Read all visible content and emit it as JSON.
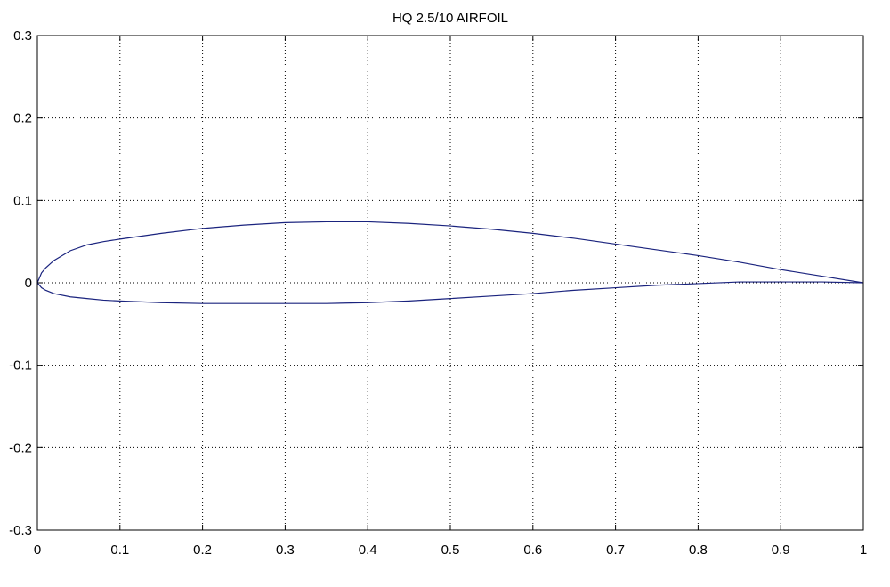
{
  "chart_data": {
    "type": "line",
    "title": "HQ 2.5/10 AIRFOIL",
    "xlabel": "",
    "ylabel": "",
    "xlim": [
      0,
      1
    ],
    "ylim": [
      -0.3,
      0.3
    ],
    "xticks": [
      0,
      0.1,
      0.2,
      0.3,
      0.4,
      0.5,
      0.6,
      0.7,
      0.8,
      0.9,
      1
    ],
    "xtick_labels": [
      "0",
      "0.1",
      "0.2",
      "0.3",
      "0.4",
      "0.5",
      "0.6",
      "0.7",
      "0.8",
      "0.9",
      "1"
    ],
    "yticks": [
      -0.3,
      -0.2,
      -0.1,
      0,
      0.1,
      0.2,
      0.3
    ],
    "ytick_labels": [
      "-0.3",
      "-0.2",
      "-0.1",
      "0",
      "0.1",
      "0.2",
      "0.3"
    ],
    "grid": true,
    "line_color": "#1a237e",
    "series": [
      {
        "x": [
          0,
          0.005,
          0.01,
          0.02,
          0.04,
          0.06,
          0.08,
          0.1,
          0.15,
          0.2,
          0.25,
          0.3,
          0.35,
          0.4,
          0.45,
          0.5,
          0.55,
          0.6,
          0.65,
          0.7,
          0.75,
          0.8,
          0.85,
          0.9,
          0.95,
          1
        ],
        "y": [
          0,
          0.012,
          0.018,
          0.027,
          0.039,
          0.046,
          0.05,
          0.053,
          0.06,
          0.066,
          0.07,
          0.073,
          0.074,
          0.074,
          0.072,
          0.069,
          0.065,
          0.06,
          0.054,
          0.047,
          0.04,
          0.033,
          0.025,
          0.016,
          0.008,
          0
        ]
      },
      {
        "x": [
          0,
          0.005,
          0.01,
          0.02,
          0.04,
          0.06,
          0.08,
          0.1,
          0.15,
          0.2,
          0.25,
          0.3,
          0.35,
          0.4,
          0.45,
          0.5,
          0.55,
          0.6,
          0.65,
          0.7,
          0.75,
          0.8,
          0.85,
          0.9,
          0.95,
          1
        ],
        "y": [
          0,
          -0.006,
          -0.009,
          -0.013,
          -0.017,
          -0.019,
          -0.021,
          -0.022,
          -0.024,
          -0.025,
          -0.025,
          -0.025,
          -0.025,
          -0.024,
          -0.022,
          -0.019,
          -0.016,
          -0.013,
          -0.009,
          -0.006,
          -0.003,
          -0.001,
          0.001,
          0.001,
          0.001,
          0
        ]
      }
    ]
  }
}
